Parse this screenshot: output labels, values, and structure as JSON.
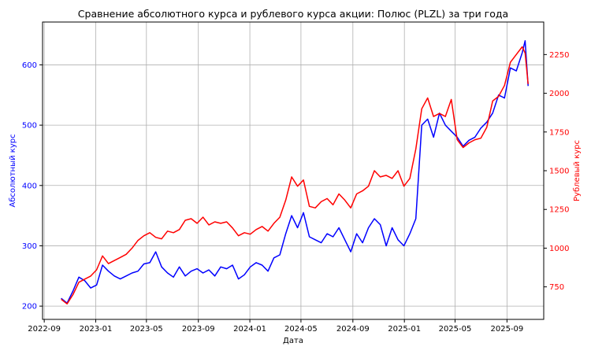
{
  "chart_data": {
    "type": "line",
    "title": "Сравнение абсолютного курса и рублевого курса акции: Полюс (PLZL) за три года",
    "xlabel": "Дата",
    "ylabel_left": "Абсолютный курс",
    "ylabel_right": "Рублевый курс",
    "x_ticks": [
      "2022-09",
      "2023-01",
      "2023-05",
      "2023-09",
      "2024-01",
      "2024-05",
      "2024-09",
      "2025-01",
      "2025-05",
      "2025-09"
    ],
    "y_left_ticks": [
      200,
      300,
      400,
      500,
      600
    ],
    "y_right_ticks": [
      750,
      1000,
      1250,
      1500,
      1750,
      2000,
      2250
    ],
    "xlim": [
      "2022-08-28",
      "2025-11-27"
    ],
    "ylim_left": [
      178,
      671
    ],
    "ylim_right": [
      540,
      2460
    ],
    "grid": true,
    "colors": {
      "left_series": "#0000ff",
      "right_series": "#ff0000",
      "grid": "#b0b0b0"
    },
    "series": [
      {
        "axis": "left",
        "dates": [
          "2022-10-11",
          "2022-10-25",
          "2022-11-08",
          "2022-11-22",
          "2022-12-06",
          "2022-12-20",
          "2023-01-03",
          "2023-01-17",
          "2023-01-31",
          "2023-02-14",
          "2023-02-28",
          "2023-03-14",
          "2023-03-28",
          "2023-04-11",
          "2023-04-25",
          "2023-05-09",
          "2023-05-23",
          "2023-06-06",
          "2023-06-20",
          "2023-07-04",
          "2023-07-18",
          "2023-08-01",
          "2023-08-15",
          "2023-08-29",
          "2023-09-12",
          "2023-09-26",
          "2023-10-10",
          "2023-10-24",
          "2023-11-07",
          "2023-11-21",
          "2023-12-05",
          "2023-12-19",
          "2024-01-02",
          "2024-01-16",
          "2024-01-30",
          "2024-02-13",
          "2024-02-27",
          "2024-03-12",
          "2024-03-26",
          "2024-04-09",
          "2024-04-23",
          "2024-05-07",
          "2024-05-21",
          "2024-06-04",
          "2024-06-18",
          "2024-07-02",
          "2024-07-16",
          "2024-07-30",
          "2024-08-13",
          "2024-08-27",
          "2024-09-10",
          "2024-09-24",
          "2024-10-08",
          "2024-10-22",
          "2024-11-05",
          "2024-11-19",
          "2024-12-03",
          "2024-12-17",
          "2024-12-31",
          "2025-01-14",
          "2025-01-28",
          "2025-02-11",
          "2025-02-25",
          "2025-03-11",
          "2025-03-25",
          "2025-04-08",
          "2025-04-22",
          "2025-05-06",
          "2025-05-20",
          "2025-06-03",
          "2025-06-17",
          "2025-07-01",
          "2025-07-15",
          "2025-07-29",
          "2025-08-12",
          "2025-08-26",
          "2025-09-09",
          "2025-09-23",
          "2025-10-07",
          "2025-10-14",
          "2025-10-21"
        ],
        "values": [
          213,
          205,
          225,
          248,
          242,
          230,
          235,
          268,
          258,
          250,
          245,
          250,
          255,
          258,
          270,
          272,
          290,
          265,
          255,
          248,
          265,
          250,
          258,
          262,
          255,
          260,
          250,
          265,
          262,
          268,
          245,
          252,
          265,
          272,
          268,
          258,
          280,
          285,
          320,
          350,
          330,
          355,
          315,
          310,
          305,
          320,
          315,
          330,
          310,
          290,
          320,
          305,
          330,
          345,
          335,
          300,
          330,
          310,
          300,
          320,
          345,
          500,
          510,
          480,
          520,
          500,
          490,
          480,
          465,
          475,
          480,
          495,
          505,
          520,
          550,
          545,
          595,
          590,
          620,
          640,
          565
        ]
      },
      {
        "axis": "right",
        "dates": [
          "2022-10-11",
          "2022-10-25",
          "2022-11-08",
          "2022-11-22",
          "2022-12-06",
          "2022-12-20",
          "2023-01-03",
          "2023-01-17",
          "2023-01-31",
          "2023-02-14",
          "2023-02-28",
          "2023-03-14",
          "2023-03-28",
          "2023-04-11",
          "2023-04-25",
          "2023-05-09",
          "2023-05-23",
          "2023-06-06",
          "2023-06-20",
          "2023-07-04",
          "2023-07-18",
          "2023-08-01",
          "2023-08-15",
          "2023-08-29",
          "2023-09-12",
          "2023-09-26",
          "2023-10-10",
          "2023-10-24",
          "2023-11-07",
          "2023-11-21",
          "2023-12-05",
          "2023-12-19",
          "2024-01-02",
          "2024-01-16",
          "2024-01-30",
          "2024-02-13",
          "2024-02-27",
          "2024-03-12",
          "2024-03-26",
          "2024-04-09",
          "2024-04-23",
          "2024-05-07",
          "2024-05-21",
          "2024-06-04",
          "2024-06-18",
          "2024-07-02",
          "2024-07-16",
          "2024-07-30",
          "2024-08-13",
          "2024-08-27",
          "2024-09-10",
          "2024-09-24",
          "2024-10-08",
          "2024-10-22",
          "2024-11-05",
          "2024-11-19",
          "2024-12-03",
          "2024-12-17",
          "2024-12-31",
          "2025-01-14",
          "2025-01-28",
          "2025-02-11",
          "2025-02-25",
          "2025-03-11",
          "2025-03-25",
          "2025-04-08",
          "2025-04-22",
          "2025-05-06",
          "2025-05-20",
          "2025-06-03",
          "2025-06-17",
          "2025-07-01",
          "2025-07-15",
          "2025-07-29",
          "2025-08-12",
          "2025-08-26",
          "2025-09-09",
          "2025-09-23",
          "2025-10-07",
          "2025-10-14",
          "2025-10-21"
        ],
        "values": [
          670,
          640,
          700,
          780,
          800,
          820,
          860,
          950,
          900,
          920,
          940,
          960,
          1000,
          1050,
          1080,
          1100,
          1070,
          1060,
          1110,
          1100,
          1120,
          1180,
          1190,
          1160,
          1200,
          1150,
          1170,
          1160,
          1170,
          1130,
          1080,
          1100,
          1090,
          1120,
          1140,
          1110,
          1160,
          1200,
          1310,
          1460,
          1400,
          1440,
          1270,
          1260,
          1300,
          1320,
          1280,
          1350,
          1310,
          1260,
          1350,
          1370,
          1400,
          1500,
          1460,
          1470,
          1450,
          1500,
          1400,
          1450,
          1640,
          1900,
          1970,
          1850,
          1870,
          1850,
          1960,
          1700,
          1650,
          1680,
          1700,
          1710,
          1780,
          1950,
          1980,
          2050,
          2200,
          2250,
          2300,
          2260,
          2060
        ]
      }
    ]
  }
}
